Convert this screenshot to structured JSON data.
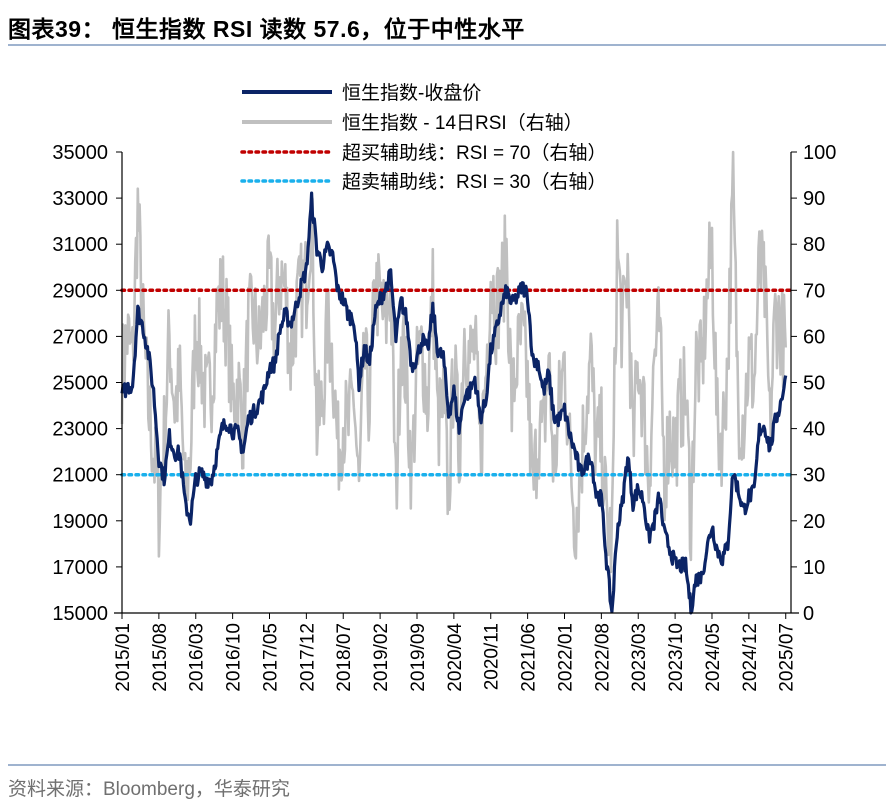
{
  "title": "图表39：  恒生指数 RSI 读数 57.6，位于中性水平",
  "source": "资料来源：Bloomberg，华泰研究",
  "chart_data": {
    "type": "line",
    "title": "图表39：  恒生指数 RSI 读数 57.6，位于中性水平",
    "legend_position": "top-center",
    "grid": false,
    "colors": {
      "hsi": "#0b2466",
      "rsi": "#c0c0c0",
      "overbought": "#c00000",
      "oversold": "#1ab0ec"
    },
    "y_left": {
      "ylim": [
        15000,
        35000
      ],
      "ticks": [
        "15000",
        "17000",
        "19000",
        "21000",
        "23000",
        "25000",
        "27000",
        "29000",
        "31000",
        "33000",
        "35000"
      ]
    },
    "y_right": {
      "ylim": [
        0,
        100
      ],
      "ticks": [
        "0",
        "10",
        "20",
        "30",
        "40",
        "50",
        "60",
        "70",
        "80",
        "90",
        "100"
      ]
    },
    "x_ticks": [
      "2015/01",
      "2015/08",
      "2016/03",
      "2016/10",
      "2017/05",
      "2017/12",
      "2018/07",
      "2019/02",
      "2019/09",
      "2020/04",
      "2020/11",
      "2021/06",
      "2022/01",
      "2022/08",
      "2023/03",
      "2023/10",
      "2024/05",
      "2024/12",
      "2025/07"
    ],
    "x_start": "2015/01",
    "x_end": "2025/08",
    "series": [
      {
        "name": "恒生指数-收盘价",
        "axis": "left",
        "frequency": "monthly",
        "start": "2015/01",
        "values": [
          24500,
          24800,
          24900,
          28100,
          27400,
          26250,
          24600,
          21700,
          20850,
          22650,
          21950,
          21900,
          19700,
          19100,
          20800,
          21070,
          20800,
          20800,
          21900,
          23000,
          23300,
          22900,
          22800,
          22000,
          23400,
          23700,
          24100,
          24600,
          25700,
          25800,
          27300,
          27970,
          27550,
          28250,
          29180,
          29900,
          32900,
          30800,
          30100,
          30800,
          30500,
          28950,
          28580,
          27900,
          27790,
          24980,
          26500,
          25850,
          27940,
          28630,
          29050,
          29700,
          26900,
          28540,
          27780,
          25720,
          26090,
          26900,
          26350,
          28190,
          26310,
          26130,
          23600,
          24640,
          22960,
          24430,
          24600,
          25180,
          23460,
          24100,
          26340,
          27230,
          28280,
          28980,
          28380,
          28720,
          29150,
          28830,
          25960,
          25880,
          24580,
          25380,
          23480,
          23400,
          23800,
          22710,
          21990,
          21090,
          21420,
          21860,
          20160,
          19950,
          17220,
          15000,
          18600,
          19780,
          21840,
          19790,
          20400,
          19890,
          18230,
          18920,
          20080,
          18380,
          17810,
          17110,
          17040,
          17050,
          15200,
          16510,
          16540,
          17760,
          18800,
          17720,
          17340,
          17990,
          21130,
          20320,
          19420,
          20060,
          20230,
          22940,
          23120,
          22120,
          23290,
          24070,
          25300
        ]
      },
      {
        "name": "恒生指数 - 14日RSI（右轴）",
        "axis": "right",
        "frequency": "monthly",
        "start": "2015/01",
        "values": [
          52,
          60,
          55,
          88,
          62,
          45,
          35,
          22,
          38,
          60,
          45,
          50,
          25,
          35,
          62,
          55,
          45,
          50,
          65,
          70,
          62,
          45,
          50,
          40,
          62,
          64,
          58,
          66,
          72,
          60,
          74,
          70,
          55,
          65,
          70,
          72,
          88,
          40,
          45,
          62,
          55,
          35,
          42,
          40,
          48,
          25,
          55,
          45,
          70,
          68,
          62,
          72,
          25,
          62,
          50,
          30,
          52,
          58,
          45,
          70,
          40,
          45,
          25,
          55,
          35,
          62,
          55,
          58,
          35,
          50,
          75,
          65,
          70,
          78,
          45,
          55,
          60,
          50,
          25,
          40,
          38,
          55,
          30,
          45,
          55,
          35,
          20,
          30,
          45,
          55,
          35,
          38,
          20,
          15,
          80,
          60,
          75,
          35,
          55,
          45,
          28,
          55,
          62,
          30,
          40,
          35,
          45,
          48,
          20,
          55,
          52,
          68,
          80,
          40,
          38,
          55,
          92,
          45,
          42,
          55,
          50,
          75,
          70,
          40,
          65,
          62,
          57.6
        ]
      },
      {
        "name": "超买辅助线：RSI = 70（右轴）",
        "axis": "right",
        "value": 70
      },
      {
        "name": "超卖辅助线：RSI = 30（右轴）",
        "axis": "right",
        "value": 30
      }
    ]
  }
}
